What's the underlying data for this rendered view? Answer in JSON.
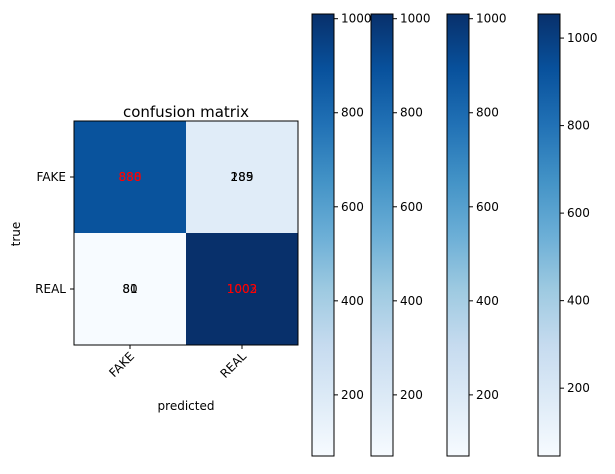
{
  "chart_data": {
    "type": "heatmap",
    "title": "confusion matrix",
    "xlabel": "predicted",
    "ylabel": "true",
    "x_categories": [
      "FAKE",
      "REAL"
    ],
    "y_categories": [
      "FAKE",
      "REAL"
    ],
    "cells": [
      {
        "row": 0,
        "col": 0,
        "value": 880,
        "text": "880",
        "text_color": "#ff0000"
      },
      {
        "row": 0,
        "col": 1,
        "value": 185,
        "text": "185",
        "text_color": "#000000"
      },
      {
        "row": 1,
        "col": 0,
        "value": 80,
        "text": "80",
        "text_color": "#000000"
      },
      {
        "row": 1,
        "col": 1,
        "value": 1002,
        "text": "1002",
        "text_color": "#ff0000"
      }
    ],
    "overlapping_labels": [
      {
        "row": 0,
        "col": 0,
        "text": "888",
        "text_color": "#ff0000"
      },
      {
        "row": 0,
        "col": 1,
        "text": "289",
        "text_color": "#000000"
      },
      {
        "row": 1,
        "col": 0,
        "text": "81",
        "text_color": "#000000"
      },
      {
        "row": 1,
        "col": 1,
        "text": "1003",
        "text_color": "#ff0000"
      }
    ],
    "colormap": "Blues",
    "colorbars": [
      {
        "min": 70,
        "max": 1010,
        "ticks": [
          200,
          400,
          600,
          800,
          1000
        ]
      },
      {
        "min": 70,
        "max": 1010,
        "ticks": [
          200,
          400,
          600,
          800,
          1000
        ]
      },
      {
        "min": 70,
        "max": 1010,
        "ticks": [
          200,
          400,
          600,
          800,
          1000
        ]
      },
      {
        "min": 45,
        "max": 1055,
        "ticks": [
          200,
          400,
          600,
          800,
          1000
        ]
      }
    ]
  }
}
